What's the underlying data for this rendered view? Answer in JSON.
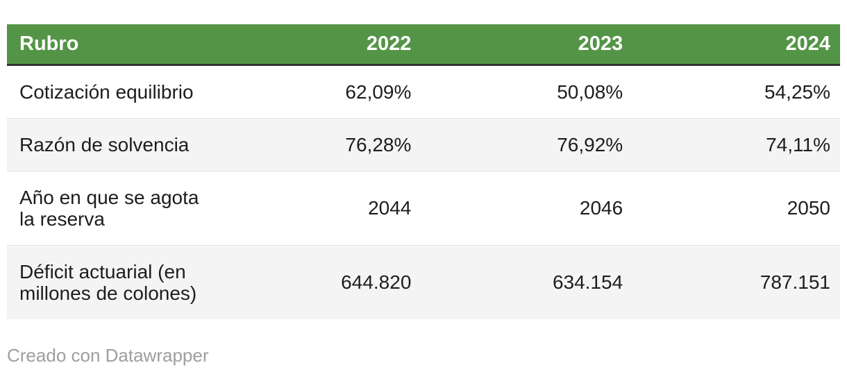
{
  "colors": {
    "header_bg": "#549447",
    "header_text": "#ffffff",
    "header_border": "#323232",
    "stripe_bg": "#f4f4f4",
    "body_text": "#1d1d1d",
    "attribution_text": "#9e9e9e"
  },
  "chart_data": {
    "type": "table",
    "title": "",
    "columns": [
      "Rubro",
      "2022",
      "2023",
      "2024"
    ],
    "rows": [
      {
        "label": "Cotización equilibrio",
        "values": [
          "62,09%",
          "50,08%",
          "54,25%"
        ]
      },
      {
        "label": "Razón de solvencia",
        "values": [
          "76,28%",
          "76,92%",
          "74,11%"
        ]
      },
      {
        "label": "Año en que se agota\nla reserva",
        "values": [
          "2044",
          "2046",
          "2050"
        ]
      },
      {
        "label": "Déficit actuarial (en\nmillones de colones)",
        "values": [
          "644.820",
          "634.154",
          "787.151"
        ]
      }
    ],
    "layout_hints": {
      "header_style": "green-bar",
      "zebra_striping": true,
      "value_alignment": "right",
      "label_alignment": "left"
    }
  },
  "table": {
    "columns": [
      {
        "label": "Rubro"
      },
      {
        "label": "2022"
      },
      {
        "label": "2023"
      },
      {
        "label": "2024"
      }
    ],
    "rows": [
      {
        "label": "Cotización equilibrio",
        "values": [
          "62,09%",
          "50,08%",
          "54,25%"
        ]
      },
      {
        "label": "Razón de solvencia",
        "values": [
          "76,28%",
          "76,92%",
          "74,11%"
        ]
      },
      {
        "label": "Año en que se agota\nla reserva",
        "values": [
          "2044",
          "2046",
          "2050"
        ]
      },
      {
        "label": "Déficit actuarial (en\nmillones de colones)",
        "values": [
          "644.820",
          "634.154",
          "787.151"
        ]
      }
    ]
  },
  "footer": {
    "attribution": "Creado con Datawrapper"
  }
}
